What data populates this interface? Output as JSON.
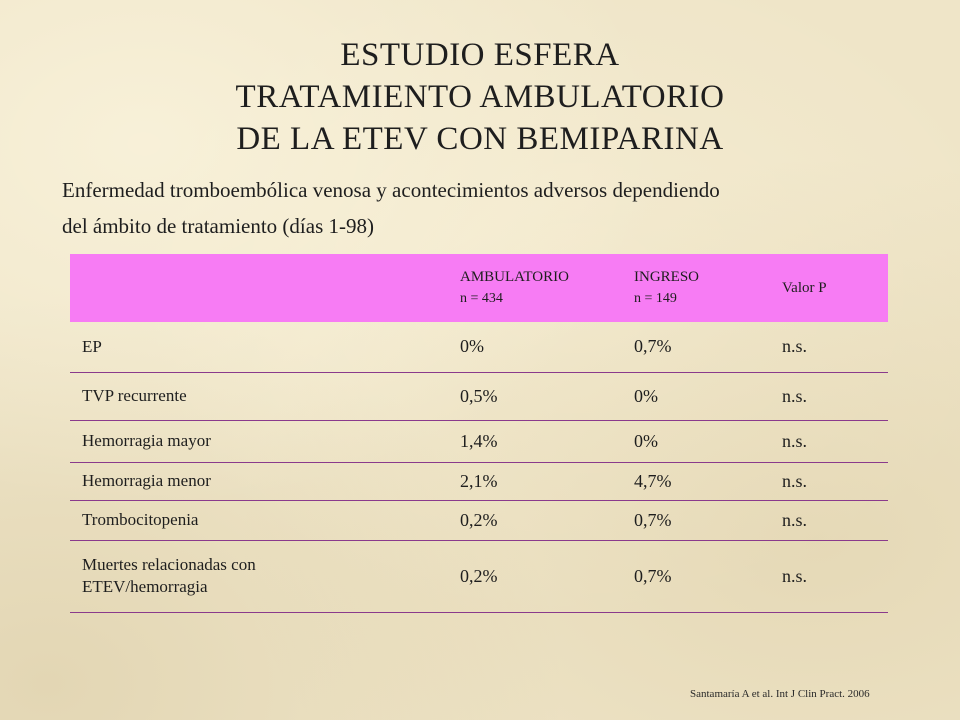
{
  "slide": {
    "title_lines": [
      "ESTUDIO ESFERA",
      "TRATAMIENTO AMBULATORIO",
      "DE LA ETEV CON BEMIPARINA"
    ],
    "subtitle_lines": [
      "Enfermedad tromboembólica venosa y acontecimientos adversos dependiendo",
      "del ámbito de tratamiento (días 1-98)"
    ],
    "table": {
      "header": {
        "col1": "",
        "ambulatorio_label": "AMBULATORIO",
        "ambulatorio_n": "n = 434",
        "ingreso_label": "INGRESO",
        "ingreso_n": "n = 149",
        "valor_p": "Valor P"
      },
      "rows": [
        {
          "label": "EP",
          "ambulatorio": "0%",
          "ingreso": "0,7%",
          "p": "n.s."
        },
        {
          "label": "TVP recurrente",
          "ambulatorio": "0,5%",
          "ingreso": "0%",
          "p": "n.s."
        },
        {
          "label": "Hemorragia mayor",
          "ambulatorio": "1,4%",
          "ingreso": "0%",
          "p": "n.s."
        },
        {
          "label": "Hemorragia menor",
          "ambulatorio": "2,1%",
          "ingreso": "4,7%",
          "p": "n.s."
        },
        {
          "label": "Trombocitopenia",
          "ambulatorio": "0,2%",
          "ingreso": "0,7%",
          "p": "n.s."
        },
        {
          "label_line1": "Muertes relacionadas con",
          "label_line2": "ETEV/hemorragia",
          "ambulatorio": "0,2%",
          "ingreso": "0,7%",
          "p": "n.s."
        }
      ],
      "header_color": "#f77cf4",
      "rule_color": "#8a3a8c"
    },
    "footer": "Santamaría A et al. Int J Clin Pract. 2006"
  }
}
